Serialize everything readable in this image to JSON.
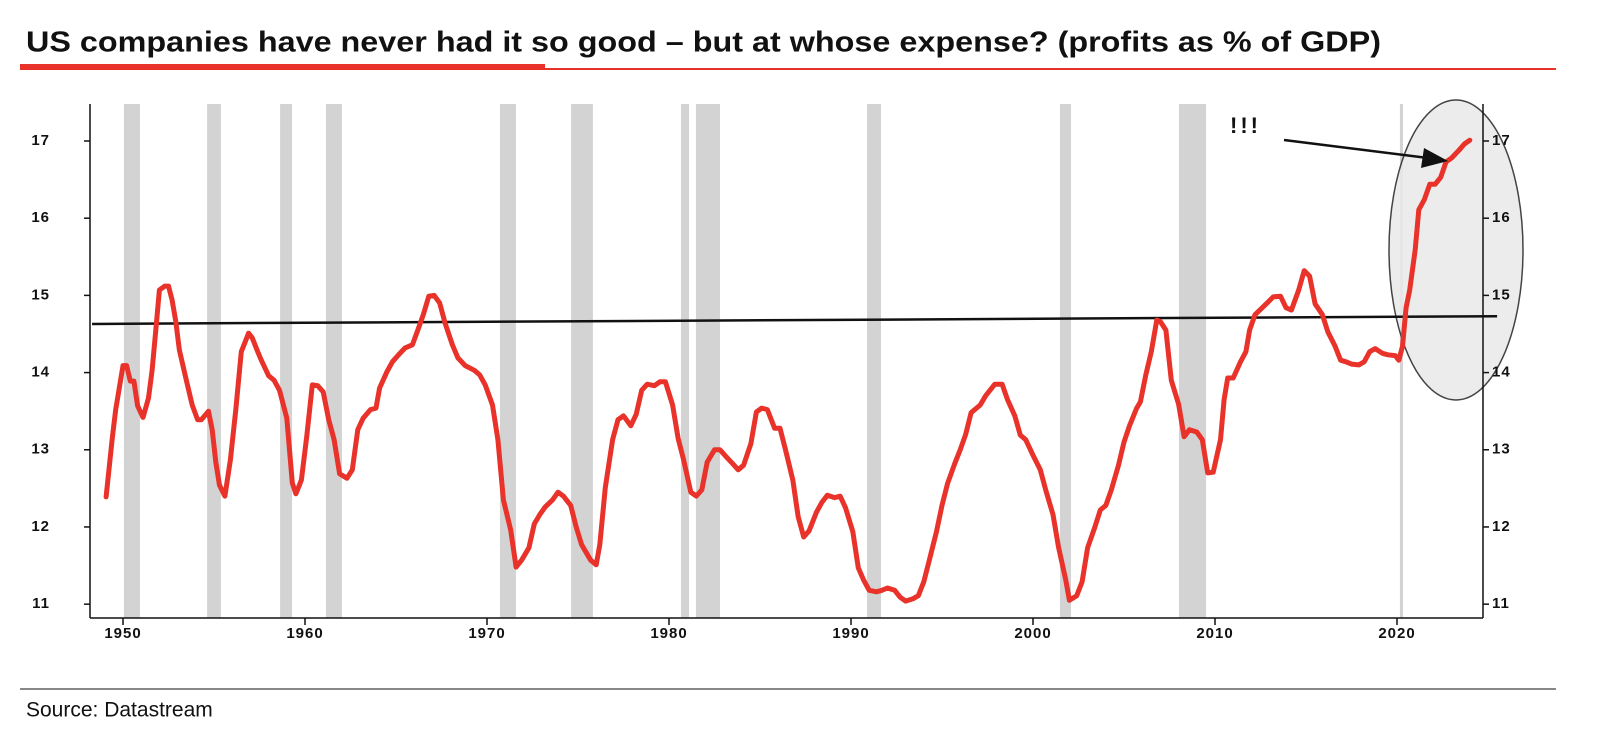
{
  "chart_data": {
    "type": "line",
    "title": "US companies have never had it so good – but at whose expense? (profits as % of GDP)",
    "source": "Source: Datastream",
    "annotation": "!!!",
    "xlim": [
      1948,
      2025
    ],
    "ylim": [
      10.8,
      17.5
    ],
    "xticks": [
      1950,
      1960,
      1970,
      1980,
      1990,
      2000,
      2010,
      2020
    ],
    "yticks": [
      11,
      12,
      13,
      14,
      15,
      16,
      17
    ],
    "recession_color": "#d3d3d3",
    "recessions": [
      [
        1950.05,
        1950.93
      ],
      [
        1954.62,
        1955.38
      ],
      [
        1958.63,
        1959.29
      ],
      [
        1961.15,
        1962.03
      ],
      [
        1970.71,
        1971.59
      ],
      [
        1974.62,
        1975.82
      ],
      [
        1980.66,
        1981.1
      ],
      [
        1981.48,
        1982.8
      ],
      [
        1990.88,
        1991.65
      ],
      [
        2001.48,
        2002.09
      ],
      [
        2008.02,
        2009.51
      ],
      [
        2020.16,
        2020.33
      ]
    ],
    "trend": {
      "color": "#111111",
      "x": [
        1948.3,
        2025.5
      ],
      "values": [
        14.63,
        14.73
      ]
    },
    "series": [
      {
        "color": "#e8322a",
        "x": [
          1949.07,
          1949.4,
          1949.6,
          1950.0,
          1950.2,
          1950.4,
          1950.6,
          1950.8,
          1951.1,
          1951.4,
          1951.6,
          1951.8,
          1952.0,
          1952.3,
          1952.5,
          1952.7,
          1952.9,
          1953.1,
          1953.5,
          1953.8,
          1954.1,
          1954.3,
          1954.7,
          1954.9,
          1955.1,
          1955.3,
          1955.6,
          1955.9,
          1956.2,
          1956.5,
          1956.9,
          1957.1,
          1957.4,
          1957.6,
          1958.0,
          1958.3,
          1958.6,
          1959.0,
          1959.3,
          1959.5,
          1959.8,
          1960.1,
          1960.4,
          1960.7,
          1961.0,
          1961.3,
          1961.6,
          1961.9,
          1962.3,
          1962.6,
          1962.9,
          1963.2,
          1963.6,
          1963.9,
          1964.1,
          1964.5,
          1964.8,
          1965.1,
          1965.5,
          1965.9,
          1966.2,
          1966.5,
          1966.8,
          1967.1,
          1967.4,
          1967.7,
          1968.1,
          1968.4,
          1968.8,
          1969.3,
          1969.6,
          1969.9,
          1970.3,
          1970.6,
          1970.9,
          1971.3,
          1971.6,
          1971.9,
          1972.3,
          1972.6,
          1972.9,
          1973.2,
          1973.6,
          1973.9,
          1974.2,
          1974.6,
          1974.9,
          1975.2,
          1975.7,
          1976.0,
          1976.2,
          1976.5,
          1976.9,
          1977.2,
          1977.5,
          1977.9,
          1978.2,
          1978.5,
          1978.8,
          1979.2,
          1979.5,
          1979.8,
          1980.2,
          1980.5,
          1980.8,
          1981.2,
          1981.5,
          1981.8,
          1982.1,
          1982.5,
          1982.8,
          1983.1,
          1983.5,
          1983.8,
          1984.1,
          1984.5,
          1984.8,
          1985.1,
          1985.4,
          1985.8,
          1986.1,
          1986.4,
          1986.8,
          1987.1,
          1987.4,
          1987.7,
          1988.1,
          1988.4,
          1988.7,
          1989.1,
          1989.4,
          1989.7,
          1990.1,
          1990.4,
          1990.7,
          1991.0,
          1991.4,
          1991.7,
          1992.0,
          1992.4,
          1992.7,
          1993.0,
          1993.4,
          1993.7,
          1994.0,
          1994.3,
          1994.7,
          1995.0,
          1995.3,
          1995.7,
          1996.0,
          1996.3,
          1996.6,
          1997.1,
          1997.4,
          1997.9,
          1998.3,
          1998.6,
          1999.0,
          1999.3,
          1999.6,
          2000.0,
          2000.4,
          2000.7,
          2001.1,
          2001.4,
          2001.8,
          2002.0,
          2002.4,
          2002.7,
          2003.0,
          2003.4,
          2003.7,
          2004.0,
          2004.3,
          2004.7,
          2005.0,
          2005.3,
          2005.7,
          2005.9,
          2006.2,
          2006.5,
          2006.8,
          2007.0,
          2007.3,
          2007.6,
          2008.0,
          2008.3,
          2008.6,
          2009.0,
          2009.3,
          2009.6,
          2009.9,
          2010.3,
          2010.5,
          2010.7,
          2011.0,
          2011.4,
          2011.7,
          2011.9,
          2012.2,
          2012.6,
          2012.9,
          2013.2,
          2013.6,
          2013.9,
          2014.2,
          2014.6,
          2014.9,
          2015.2,
          2015.5,
          2015.9,
          2016.2,
          2016.6,
          2016.9,
          2017.2,
          2017.5,
          2017.9,
          2018.2,
          2018.5,
          2018.8,
          2019.2,
          2019.5,
          2019.9,
          2020.1,
          2020.3,
          2020.5,
          2020.7,
          2021.0,
          2021.2,
          2021.5,
          2021.8,
          2022.1,
          2022.4,
          2022.7,
          2023.0,
          2023.4,
          2023.7,
          2024.0
        ],
        "values": [
          12.39,
          13.13,
          13.52,
          14.09,
          14.09,
          13.89,
          13.89,
          13.57,
          13.42,
          13.67,
          14.03,
          14.55,
          15.07,
          15.12,
          15.12,
          14.94,
          14.66,
          14.29,
          13.88,
          13.58,
          13.39,
          13.39,
          13.5,
          13.26,
          12.84,
          12.54,
          12.4,
          12.87,
          13.52,
          14.27,
          14.51,
          14.45,
          14.27,
          14.16,
          13.96,
          13.9,
          13.77,
          13.41,
          12.57,
          12.43,
          12.61,
          13.18,
          13.84,
          13.83,
          13.75,
          13.39,
          13.13,
          12.69,
          12.63,
          12.74,
          13.26,
          13.41,
          13.52,
          13.54,
          13.8,
          14.01,
          14.14,
          14.22,
          14.32,
          14.36,
          14.55,
          14.75,
          14.99,
          15.0,
          14.9,
          14.64,
          14.36,
          14.19,
          14.09,
          14.03,
          13.97,
          13.84,
          13.58,
          13.13,
          12.35,
          11.96,
          11.48,
          11.57,
          11.73,
          12.04,
          12.16,
          12.26,
          12.35,
          12.45,
          12.4,
          12.28,
          12.0,
          11.77,
          11.57,
          11.51,
          11.77,
          12.51,
          13.13,
          13.39,
          13.44,
          13.31,
          13.46,
          13.77,
          13.85,
          13.83,
          13.88,
          13.88,
          13.58,
          13.15,
          12.87,
          12.45,
          12.4,
          12.48,
          12.84,
          13.0,
          13.0,
          12.92,
          12.82,
          12.74,
          12.8,
          13.08,
          13.49,
          13.54,
          13.52,
          13.28,
          13.28,
          13.0,
          12.61,
          12.13,
          11.87,
          11.95,
          12.19,
          12.32,
          12.41,
          12.38,
          12.4,
          12.25,
          11.94,
          11.47,
          11.31,
          11.18,
          11.16,
          11.18,
          11.21,
          11.18,
          11.09,
          11.04,
          11.07,
          11.11,
          11.29,
          11.57,
          11.94,
          12.28,
          12.56,
          12.82,
          13.0,
          13.2,
          13.48,
          13.58,
          13.7,
          13.85,
          13.85,
          13.65,
          13.44,
          13.19,
          13.13,
          12.93,
          12.74,
          12.48,
          12.16,
          11.74,
          11.31,
          11.05,
          11.11,
          11.29,
          11.73,
          12.0,
          12.22,
          12.28,
          12.48,
          12.8,
          13.1,
          13.31,
          13.54,
          13.62,
          13.97,
          14.27,
          14.68,
          14.66,
          14.55,
          13.9,
          13.59,
          13.17,
          13.26,
          13.23,
          13.13,
          12.7,
          12.71,
          13.13,
          13.65,
          13.93,
          13.93,
          14.14,
          14.27,
          14.55,
          14.75,
          14.84,
          14.91,
          14.98,
          14.99,
          14.84,
          14.81,
          15.07,
          15.32,
          15.25,
          14.89,
          14.75,
          14.53,
          14.34,
          14.16,
          14.14,
          14.11,
          14.1,
          14.14,
          14.27,
          14.31,
          14.25,
          14.23,
          14.22,
          14.16,
          14.34,
          14.84,
          15.07,
          15.59,
          16.11,
          16.24,
          16.44,
          16.44,
          16.53,
          16.73,
          16.78,
          16.88,
          16.96,
          17.01
        ]
      }
    ]
  }
}
